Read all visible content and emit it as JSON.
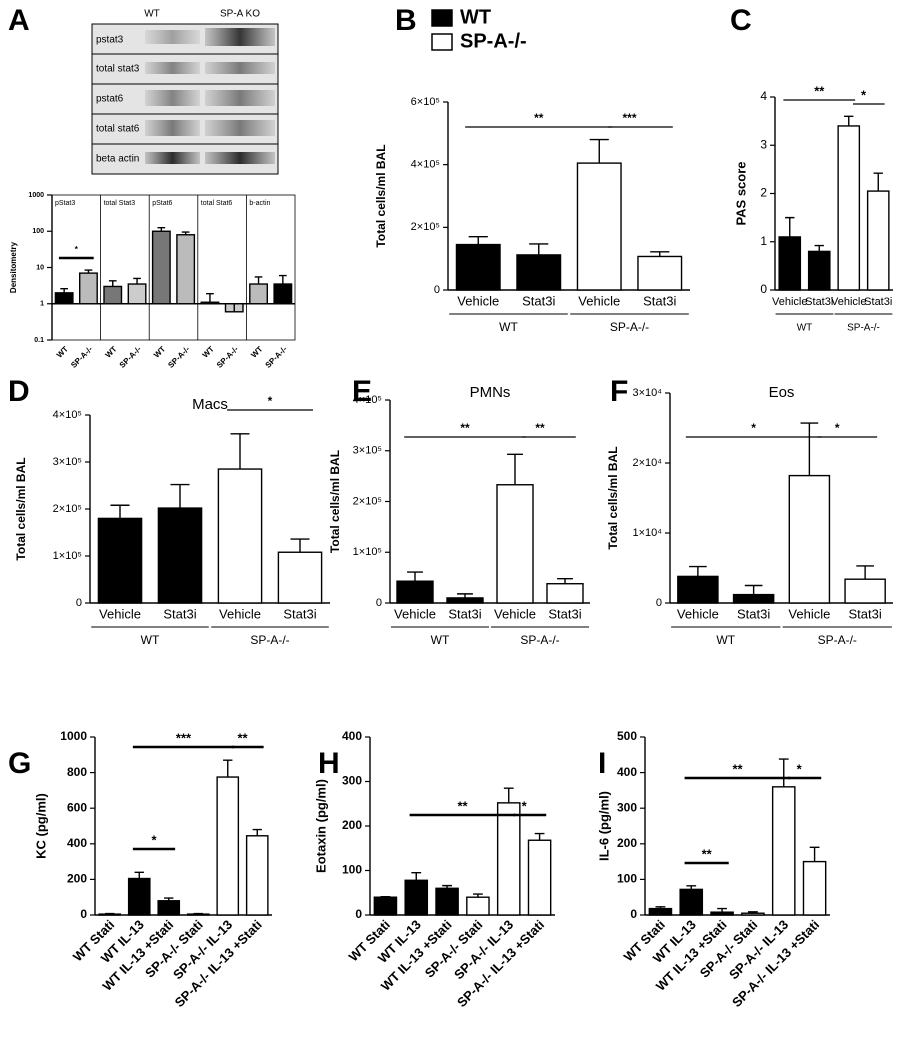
{
  "blot": {
    "label": "A",
    "columns": [
      "WT",
      "SP-A KO"
    ],
    "rows": [
      "pstat3",
      "total stat3",
      "pstat6",
      "total stat6",
      "beta actin"
    ]
  },
  "chart_data": [
    {
      "type": "bar",
      "log": true,
      "ylabel": "Densitometry",
      "group_titles": [
        "pStat3",
        "total Stat3",
        "pStat6",
        "total Stat6",
        "b-actin"
      ],
      "categories": [
        "WT",
        "SP-A-/-",
        "WT",
        "SP-A-/-",
        "WT",
        "SP-A-/-",
        "WT",
        "SP-A-/-",
        "WT",
        "SP-A-/-"
      ],
      "values": [
        2,
        7,
        3,
        3.5,
        100,
        80,
        1.1,
        0.6,
        3.5,
        3.5
      ],
      "errors": [
        0.6,
        1.5,
        1.3,
        1.5,
        25,
        15,
        0.8,
        0.4,
        2,
        2.5
      ],
      "colors": [
        "#000000",
        "#bbbbbb",
        "#777777",
        "#cccccc",
        "#777777",
        "#bbbbbb",
        "#555555",
        "#cccccc",
        "#bbbbbb",
        "#000000"
      ],
      "annotations": [
        "*"
      ],
      "ylim": [
        0.1,
        1000
      ],
      "yticks": [
        0.1,
        1,
        10,
        100,
        1000
      ]
    },
    {
      "type": "bar",
      "label": "B",
      "ylabel": "Total cells/ml BAL",
      "legend": [
        {
          "name": "WT",
          "color": "#000000"
        },
        {
          "name": "SP-A-/-",
          "color": "#ffffff"
        }
      ],
      "categories": [
        "Vehicle",
        "Stat3i",
        "Vehicle",
        "Stat3i"
      ],
      "groups": [
        "WT",
        "SP-A-/-"
      ],
      "values": [
        145000,
        112000,
        405000,
        107000
      ],
      "errors": [
        25000,
        35000,
        75000,
        15000
      ],
      "colors": [
        "#000000",
        "#000000",
        "#ffffff",
        "#ffffff"
      ],
      "annotations": [
        "**",
        "***"
      ],
      "ylim": [
        0,
        600000
      ],
      "yticks": [
        0,
        {
          "value": 200000,
          "label": "2×10⁵"
        },
        {
          "value": 400000,
          "label": "4×10⁵"
        },
        {
          "value": 600000,
          "label": "6×10⁵"
        }
      ]
    },
    {
      "type": "bar",
      "label": "C",
      "ylabel": "PAS score",
      "categories": [
        "Vehicle",
        "Stat3i",
        "Vehicle",
        "Stat3i"
      ],
      "groups": [
        "WT",
        "SP-A-/-"
      ],
      "values": [
        1.1,
        0.8,
        3.4,
        2.05
      ],
      "errors": [
        0.4,
        0.12,
        0.2,
        0.37
      ],
      "colors": [
        "#000000",
        "#000000",
        "#ffffff",
        "#ffffff"
      ],
      "annotations": [
        "**",
        "*"
      ],
      "ylim": [
        0,
        4
      ],
      "yticks": [
        0,
        1,
        2,
        3,
        4
      ]
    },
    {
      "type": "bar",
      "label": "D",
      "title": "Macs",
      "ylabel": "Total cells/ml BAL",
      "categories": [
        "Vehicle",
        "Stat3i",
        "Vehicle",
        "Stat3i"
      ],
      "groups": [
        "WT",
        "SP-A-/-"
      ],
      "values": [
        180000,
        202000,
        285000,
        108000
      ],
      "errors": [
        28000,
        50000,
        75000,
        28000
      ],
      "colors": [
        "#000000",
        "#000000",
        "#ffffff",
        "#ffffff"
      ],
      "annotations": [
        "*"
      ],
      "ylim": [
        0,
        400000
      ],
      "yticks": [
        0,
        {
          "value": 100000,
          "label": "1×10⁵"
        },
        {
          "value": 200000,
          "label": "2×10⁵"
        },
        {
          "value": 300000,
          "label": "3×10⁵"
        },
        {
          "value": 400000,
          "label": "4×10⁵"
        }
      ]
    },
    {
      "type": "bar",
      "label": "E",
      "title": "PMNs",
      "ylabel": "Total cells/ml BAL",
      "categories": [
        "Vehicle",
        "Stat3i",
        "Vehicle",
        "Stat3i"
      ],
      "groups": [
        "WT",
        "SP-A-/-"
      ],
      "values": [
        43000,
        10000,
        233000,
        38000
      ],
      "errors": [
        18000,
        8000,
        60000,
        10000
      ],
      "colors": [
        "#000000",
        "#000000",
        "#ffffff",
        "#ffffff"
      ],
      "annotations": [
        "**",
        "**"
      ],
      "ylim": [
        0,
        400000
      ],
      "yticks": [
        0,
        {
          "value": 100000,
          "label": "1×10⁵"
        },
        {
          "value": 200000,
          "label": "2×10⁵"
        },
        {
          "value": 300000,
          "label": "3×10⁵"
        },
        {
          "value": 400000,
          "label": "4×10⁵"
        }
      ]
    },
    {
      "type": "bar",
      "label": "F",
      "title": "Eos",
      "ylabel": "Total cells/ml BAL",
      "categories": [
        "Vehicle",
        "Stat3i",
        "Vehicle",
        "Stat3i"
      ],
      "groups": [
        "WT",
        "SP-A-/-"
      ],
      "values": [
        3800,
        1200,
        18200,
        3400
      ],
      "errors": [
        1400,
        1300,
        7500,
        1900
      ],
      "colors": [
        "#000000",
        "#000000",
        "#ffffff",
        "#ffffff"
      ],
      "annotations": [
        "*",
        "*"
      ],
      "ylim": [
        0,
        30000
      ],
      "yticks": [
        0,
        {
          "value": 10000,
          "label": "1×10⁴"
        },
        {
          "value": 20000,
          "label": "2×10⁴"
        },
        {
          "value": 30000,
          "label": "3×10⁴"
        }
      ]
    },
    {
      "type": "bar",
      "label": "G",
      "ylabel": "KC (pg/ml)",
      "categories": [
        "WT Stati",
        "WT IL-13",
        "WT IL-13 +Stati",
        "SP-A-/- Stati",
        "SP-A-/- IL-13",
        "SP-A-/- IL-13 +Stati"
      ],
      "values": [
        5,
        205,
        80,
        5,
        775,
        445
      ],
      "errors": [
        3,
        35,
        15,
        3,
        95,
        35
      ],
      "colors": [
        "#000000",
        "#000000",
        "#000000",
        "#ffffff",
        "#ffffff",
        "#ffffff"
      ],
      "annotations": [
        "*",
        "***",
        "**"
      ],
      "ylim": [
        0,
        1000
      ],
      "yticks": [
        0,
        200,
        400,
        600,
        800,
        1000
      ]
    },
    {
      "type": "bar",
      "label": "H",
      "ylabel": "Eotaxin (pg/ml)",
      "categories": [
        "WT Stati",
        "WT IL-13",
        "WT IL-13 +Stati",
        "SP-A-/- Stati",
        "SP-A-/- IL-13",
        "SP-A-/- IL-13 +Stati"
      ],
      "values": [
        40,
        78,
        60,
        40,
        252,
        168
      ],
      "errors": [
        1,
        17,
        6,
        7,
        33,
        15
      ],
      "colors": [
        "#000000",
        "#000000",
        "#000000",
        "#ffffff",
        "#ffffff",
        "#ffffff"
      ],
      "annotations": [
        "**",
        "*"
      ],
      "ylim": [
        0,
        400
      ],
      "yticks": [
        0,
        100,
        200,
        300,
        400
      ]
    },
    {
      "type": "bar",
      "label": "I",
      "ylabel": "IL-6 (pg/ml)",
      "categories": [
        "WT Stati",
        "WT IL-13",
        "WT IL-13 +Stati",
        "SP-A-/- Stati",
        "SP-A-/- IL-13",
        "SP-A-/- IL-13 +Stati"
      ],
      "values": [
        18,
        72,
        8,
        5,
        360,
        150
      ],
      "errors": [
        5,
        10,
        10,
        4,
        78,
        40
      ],
      "colors": [
        "#000000",
        "#000000",
        "#000000",
        "#ffffff",
        "#ffffff",
        "#ffffff"
      ],
      "annotations": [
        "**",
        "**",
        "*"
      ],
      "ylim": [
        0,
        500
      ],
      "yticks": [
        0,
        100,
        200,
        300,
        400,
        500
      ]
    }
  ]
}
